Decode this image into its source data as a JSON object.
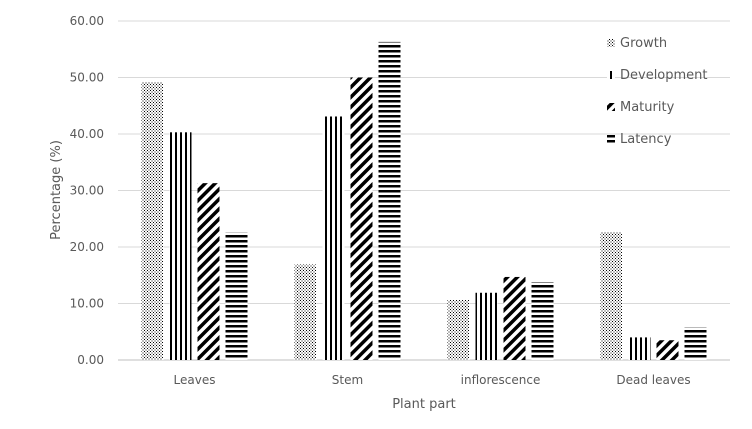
{
  "chart_data": {
    "type": "bar",
    "title": "",
    "xlabel": "Plant part",
    "ylabel": "Percentage (%)",
    "categories": [
      "Leaves",
      "Stem",
      "inflorescence",
      "Dead leaves"
    ],
    "series": [
      {
        "name": "Growth",
        "values": [
          49.2,
          16.9,
          10.7,
          22.6
        ]
      },
      {
        "name": "Development",
        "values": [
          40.3,
          43.1,
          11.9,
          4.0
        ]
      },
      {
        "name": "Maturity",
        "values": [
          31.3,
          50.0,
          14.7,
          3.5
        ]
      },
      {
        "name": "Latency",
        "values": [
          22.6,
          56.3,
          13.8,
          5.8
        ]
      }
    ],
    "ylim": [
      0,
      60
    ],
    "yticks": [
      "0.00",
      "10.00",
      "20.00",
      "30.00",
      "40.00",
      "50.00",
      "60.00"
    ],
    "grid": true,
    "legend_position": "top-right"
  }
}
